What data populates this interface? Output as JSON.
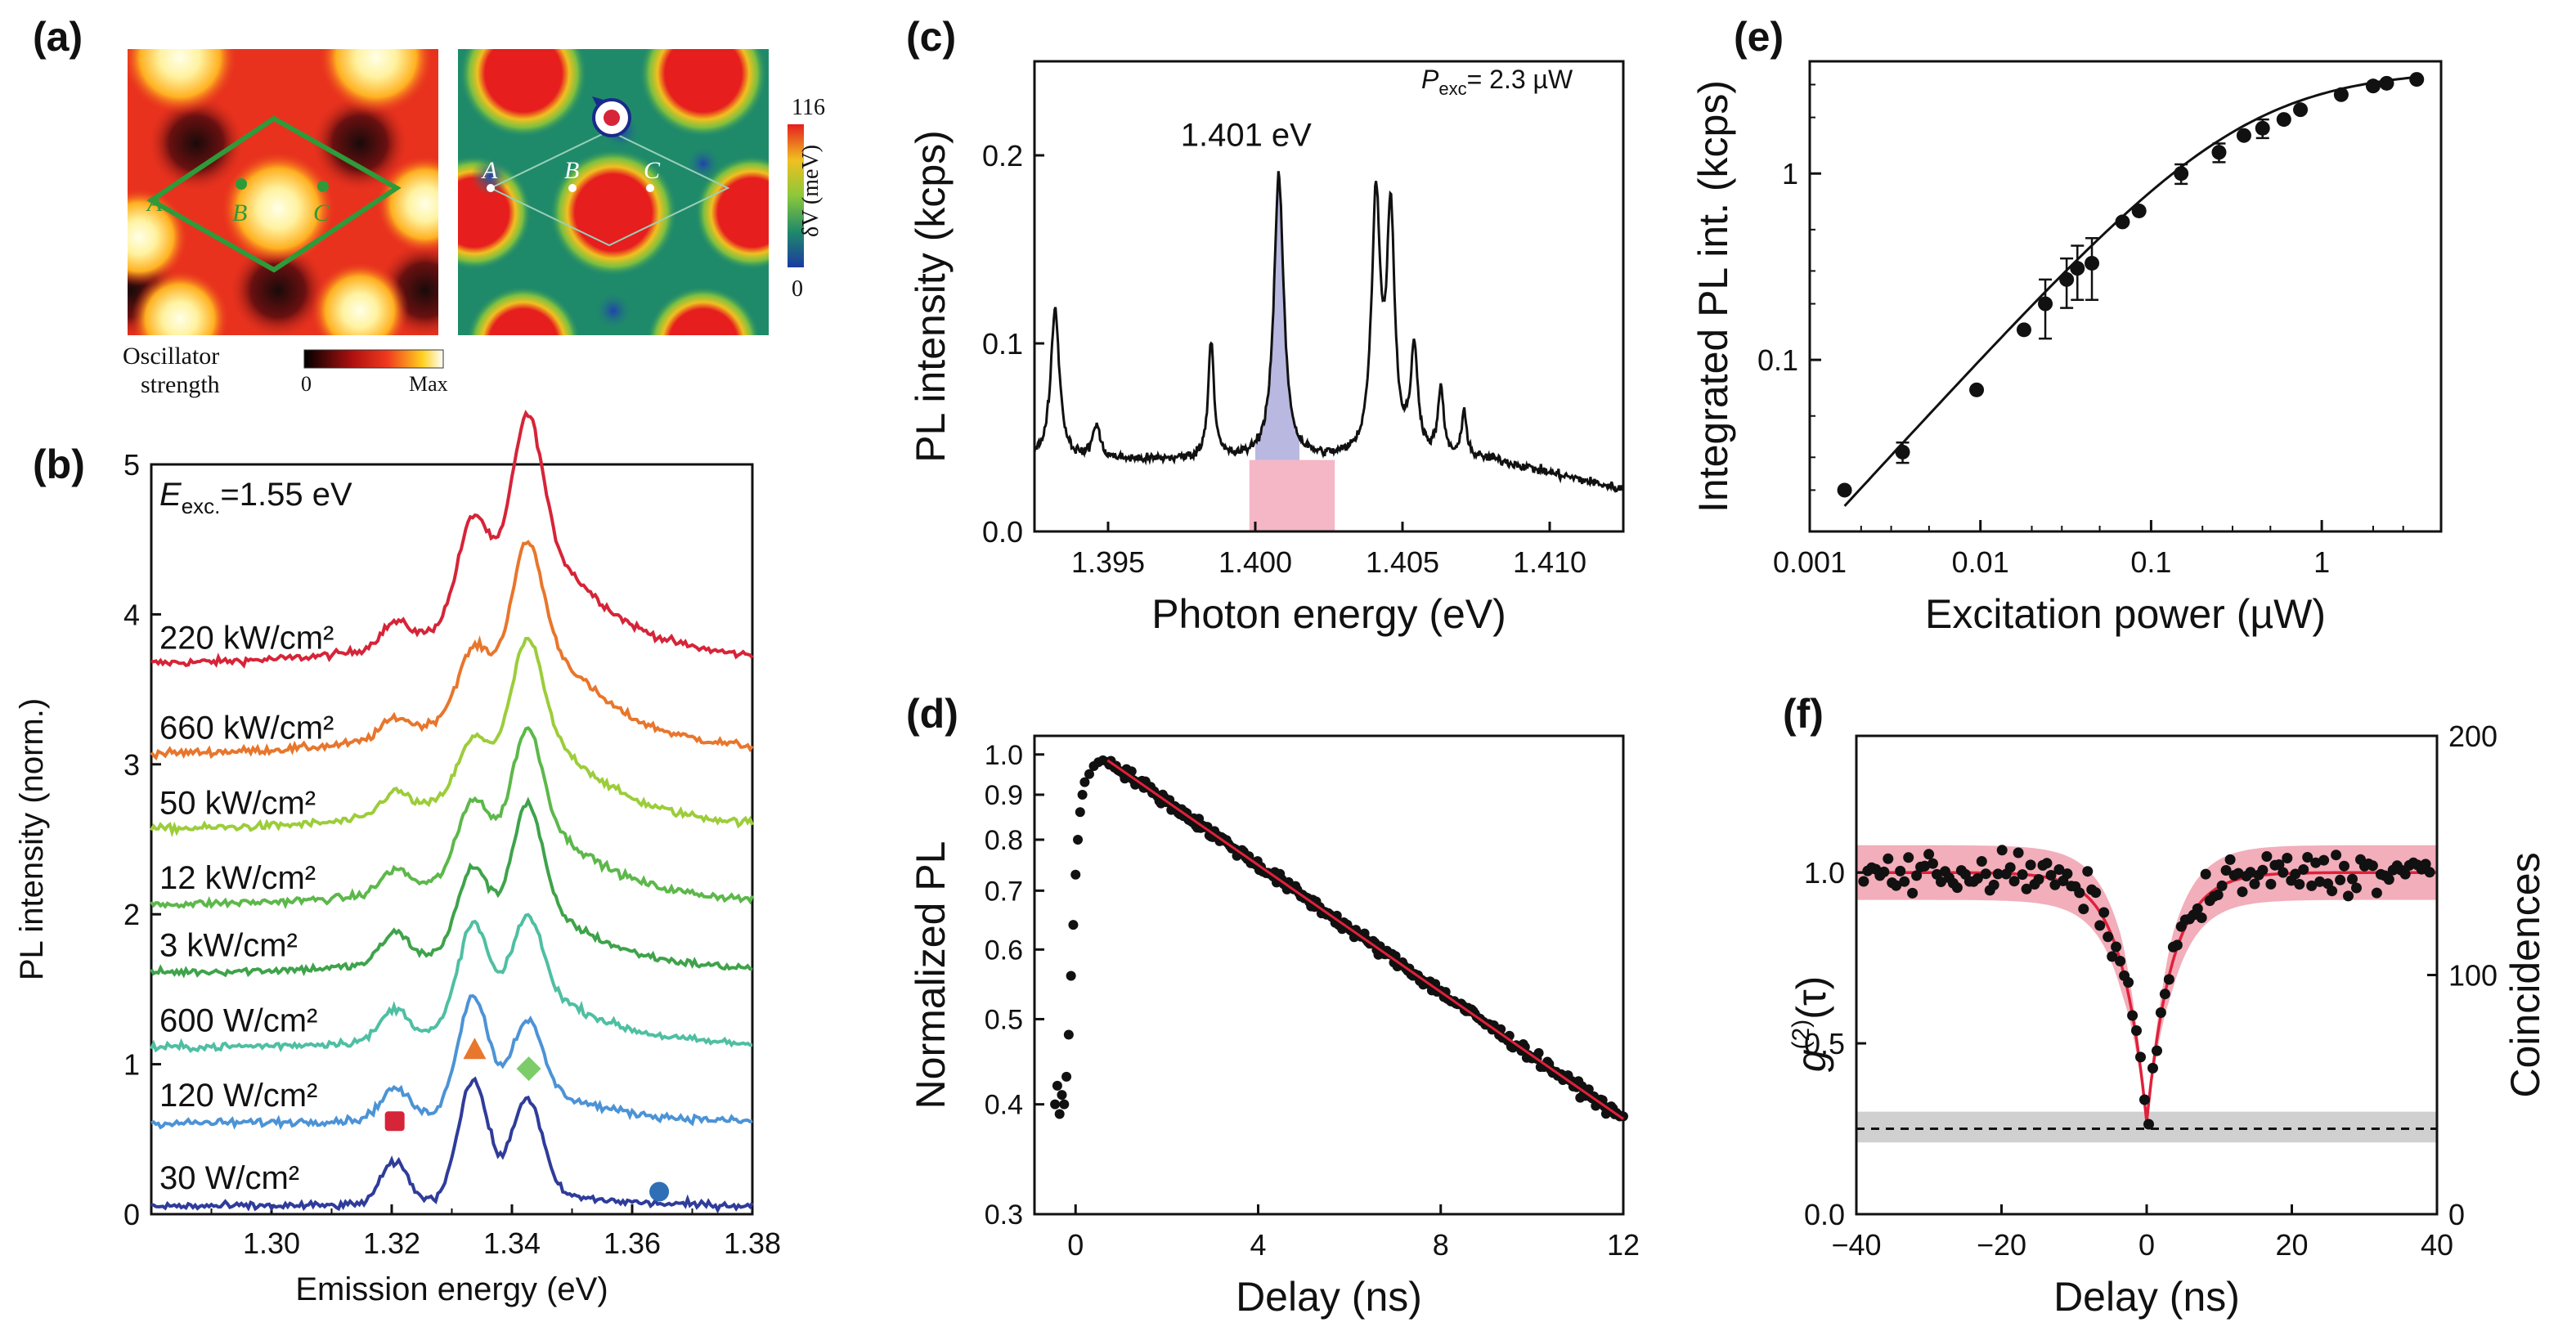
{
  "panels": {
    "a": {
      "label": "(a)"
    },
    "b": {
      "label": "(b)"
    },
    "c": {
      "label": "(c)"
    },
    "d": {
      "label": "(d)"
    },
    "e": {
      "label": "(e)"
    },
    "f": {
      "label": "(f)"
    }
  },
  "map_a": {
    "site_labels": [
      "A",
      "B",
      "C"
    ],
    "left_colorbar": {
      "title_line1": "Oscillator",
      "title_line2": "strength",
      "min": "0",
      "max": "Max"
    },
    "right_colorbar": {
      "max": "116",
      "min": "0",
      "label": "δV (meV)"
    },
    "colors": {
      "hot": "#e8321e",
      "potential_high": "#e61e1e",
      "potential_low": "#1f8a6a",
      "site_green": "#2f9a3a"
    }
  },
  "chart_data": [
    {
      "id": "b",
      "type": "line",
      "xlabel": "Emission energy (eV)",
      "ylabel": "PL intensity (norm.)",
      "xlim": [
        1.28,
        1.38
      ],
      "ylim": [
        0,
        5
      ],
      "xticks": [
        "1.30",
        "1.32",
        "1.34",
        "1.36",
        "1.38"
      ],
      "yticks": [
        "0",
        "1",
        "2",
        "3",
        "4",
        "5"
      ],
      "annotation_prefix": "E",
      "annotation_sub": "exc.",
      "annotation_value": "=1.55 eV",
      "peaks": [
        {
          "x": 1.3205,
          "width": 0.0023
        },
        {
          "x": 1.3335,
          "width": 0.0025
        },
        {
          "x": 1.3425,
          "width": 0.0025
        }
      ],
      "series": [
        {
          "label": "220 kW/cm²",
          "color": "#d62438",
          "offset": 3.65,
          "amps": [
            0.15,
            0.6,
            0.95
          ],
          "broad": 0.75
        },
        {
          "label": "660 kW/cm²",
          "color": "#e8762c",
          "offset": 3.05,
          "amps": [
            0.12,
            0.35,
            0.75
          ],
          "broad": 0.7
        },
        {
          "label": "50 kW/cm²",
          "color": "#9ccd3a",
          "offset": 2.55,
          "amps": [
            0.15,
            0.3,
            0.7
          ],
          "broad": 0.6
        },
        {
          "label": "12 kW/cm²",
          "color": "#5cb84a",
          "offset": 2.05,
          "amps": [
            0.15,
            0.45,
            0.7
          ],
          "broad": 0.5
        },
        {
          "label": "3 kW/cm²",
          "color": "#3ea34a",
          "offset": 1.6,
          "amps": [
            0.2,
            0.5,
            0.75
          ],
          "broad": 0.4
        },
        {
          "label": "600 W/cm²",
          "color": "#4fbfa2",
          "offset": 1.1,
          "amps": [
            0.2,
            0.65,
            0.55
          ],
          "broad": 0.35
        },
        {
          "label": "120 W/cm²",
          "color": "#4c93d6",
          "offset": 0.6,
          "amps": [
            0.2,
            0.75,
            0.5
          ],
          "broad": 0.2
        },
        {
          "label": "30 W/cm²",
          "color": "#2f3c9a",
          "offset": 0.05,
          "amps": [
            0.28,
            0.8,
            0.65
          ],
          "broad": 0.08
        }
      ],
      "markers": [
        {
          "shape": "square",
          "x": 1.3205,
          "y": 0.62,
          "color": "#d62438"
        },
        {
          "shape": "triangle",
          "x": 1.3338,
          "y": 1.1,
          "color": "#e8762c"
        },
        {
          "shape": "diamond",
          "x": 1.3428,
          "y": 0.97,
          "color": "#7ccd6a"
        },
        {
          "shape": "circle",
          "x": 1.3645,
          "y": 0.15,
          "color": "#2f6fb5"
        }
      ]
    },
    {
      "id": "c",
      "type": "line",
      "xlabel": "Photon energy (eV)",
      "ylabel": "PL intensity (kcps)",
      "xlim": [
        1.3925,
        1.4125
      ],
      "ylim": [
        0,
        0.25
      ],
      "xticks": [
        "1.395",
        "1.400",
        "1.405",
        "1.410"
      ],
      "yticks": [
        "0.0",
        "0.1",
        "0.2"
      ],
      "annotation_p": "P",
      "annotation_sub": "exc",
      "annotation_value": "= 2.3 µW",
      "peak_label": "1.401 eV",
      "baseline": 0.038,
      "peaks": [
        {
          "x": 1.3932,
          "a": 0.08,
          "w": 0.00018
        },
        {
          "x": 1.3946,
          "a": 0.018,
          "w": 0.00015
        },
        {
          "x": 1.3985,
          "a": 0.063,
          "w": 0.00012
        },
        {
          "x": 1.4008,
          "a": 0.15,
          "w": 0.0002
        },
        {
          "x": 1.4041,
          "a": 0.135,
          "w": 0.00018
        },
        {
          "x": 1.4046,
          "a": 0.125,
          "w": 0.00016
        },
        {
          "x": 1.4054,
          "a": 0.055,
          "w": 0.00015
        },
        {
          "x": 1.4063,
          "a": 0.035,
          "w": 0.00012
        },
        {
          "x": 1.4071,
          "a": 0.025,
          "w": 0.0001
        }
      ],
      "shaded_peak_range": [
        1.4,
        1.4015
      ],
      "shaded_base_range": [
        1.3998,
        1.4027
      ]
    },
    {
      "id": "d",
      "type": "scatter",
      "xlabel": "Delay (ns)",
      "ylabel": "Normalized PL",
      "scale_y": "log",
      "xlim": [
        -0.9,
        12
      ],
      "ylim": [
        0.3,
        1.05
      ],
      "xticks": [
        {
          "v": 0,
          "t": "0"
        },
        {
          "v": 4,
          "t": "4"
        },
        {
          "v": 8,
          "t": "8"
        },
        {
          "v": 12,
          "t": "12"
        }
      ],
      "yticks": [
        {
          "v": 0.3,
          "t": "0.3"
        },
        {
          "v": 0.4,
          "t": "0.4"
        },
        {
          "v": 0.5,
          "t": "0.5"
        },
        {
          "v": 0.6,
          "t": "0.6"
        },
        {
          "v": 0.7,
          "t": "0.7"
        },
        {
          "v": 0.8,
          "t": "0.8"
        },
        {
          "v": 0.9,
          "t": "0.9"
        },
        {
          "v": 1.0,
          "t": "1.0"
        }
      ],
      "fit": {
        "x": [
          0.7,
          12
        ],
        "y": [
          0.985,
          0.385
        ]
      },
      "rise_points": [
        [
          -0.45,
          0.4
        ],
        [
          -0.4,
          0.42
        ],
        [
          -0.35,
          0.39
        ],
        [
          -0.3,
          0.41
        ],
        [
          -0.25,
          0.4
        ],
        [
          -0.2,
          0.43
        ],
        [
          -0.15,
          0.48
        ],
        [
          -0.1,
          0.56
        ],
        [
          -0.05,
          0.64
        ],
        [
          0.0,
          0.73
        ],
        [
          0.05,
          0.8
        ],
        [
          0.1,
          0.86
        ],
        [
          0.15,
          0.9
        ],
        [
          0.2,
          0.93
        ],
        [
          0.3,
          0.95
        ],
        [
          0.4,
          0.97
        ],
        [
          0.5,
          0.98
        ],
        [
          0.6,
          0.985
        ]
      ],
      "scatter_count": 300,
      "scatter_spread": 0.015
    },
    {
      "id": "e",
      "type": "scatter",
      "xlabel": "Excitation power (µW)",
      "ylabel": "Integrated PL int. (kcps)",
      "scale_x": "log",
      "scale_y": "log",
      "xlim": [
        0.001,
        5
      ],
      "ylim": [
        0.012,
        4
      ],
      "xticks": [
        {
          "v": 0.001,
          "t": "0.001"
        },
        {
          "v": 0.01,
          "t": "0.01"
        },
        {
          "v": 0.1,
          "t": "0.1"
        },
        {
          "v": 1,
          "t": "1"
        }
      ],
      "yticks": [
        {
          "v": 0.1,
          "t": "0.1"
        },
        {
          "v": 1,
          "t": "1"
        }
      ],
      "points": [
        {
          "x": 0.0016,
          "y": 0.02
        },
        {
          "x": 0.0035,
          "y": 0.032,
          "err": 0.004
        },
        {
          "x": 0.0095,
          "y": 0.069
        },
        {
          "x": 0.018,
          "y": 0.145
        },
        {
          "x": 0.024,
          "y": 0.2,
          "err": 0.07
        },
        {
          "x": 0.032,
          "y": 0.27,
          "err": 0.08
        },
        {
          "x": 0.037,
          "y": 0.31,
          "err": 0.1
        },
        {
          "x": 0.045,
          "y": 0.33,
          "err": 0.12
        },
        {
          "x": 0.068,
          "y": 0.55
        },
        {
          "x": 0.085,
          "y": 0.63
        },
        {
          "x": 0.15,
          "y": 1.0,
          "err": 0.12
        },
        {
          "x": 0.25,
          "y": 1.3,
          "err": 0.15
        },
        {
          "x": 0.35,
          "y": 1.6
        },
        {
          "x": 0.45,
          "y": 1.75,
          "err": 0.2
        },
        {
          "x": 0.6,
          "y": 1.95
        },
        {
          "x": 0.75,
          "y": 2.2
        },
        {
          "x": 1.3,
          "y": 2.65
        },
        {
          "x": 2.0,
          "y": 2.95
        },
        {
          "x": 2.4,
          "y": 3.05
        },
        {
          "x": 3.6,
          "y": 3.2
        }
      ],
      "fit_model": {
        "sat": 3.8,
        "p0": 0.35
      }
    },
    {
      "id": "f",
      "type": "scatter",
      "xlabel": "Delay (ns)",
      "ylabel": "g(2)(τ)",
      "ylabel_right": "Coincidences",
      "xlim": [
        -40,
        40
      ],
      "ylim": [
        0,
        1.4
      ],
      "xticks": [
        {
          "v": -40,
          "t": "−40"
        },
        {
          "v": -20,
          "t": "−20"
        },
        {
          "v": 0,
          "t": "0"
        },
        {
          "v": 20,
          "t": "20"
        },
        {
          "v": 40,
          "t": "40"
        }
      ],
      "yticks": [
        {
          "v": 0,
          "t": "0.0"
        },
        {
          "v": 0.5,
          "t": "0.5"
        },
        {
          "v": 1.0,
          "t": "1.0"
        }
      ],
      "yticks_right": [
        {
          "v": 0,
          "t": "0"
        },
        {
          "v": 0.7,
          "t": "100"
        },
        {
          "v": 1.4,
          "t": "200"
        }
      ],
      "fit": {
        "g0": 0.27,
        "tau": 3.5
      },
      "band_halfwidth": 0.08,
      "gray_band": [
        0.21,
        0.3
      ],
      "dashed_level": 0.25,
      "scatter_count": 140,
      "colors": {
        "fit": "#e0203a",
        "band": "#f0a0ae",
        "gray": "#d0d0d0"
      }
    }
  ]
}
